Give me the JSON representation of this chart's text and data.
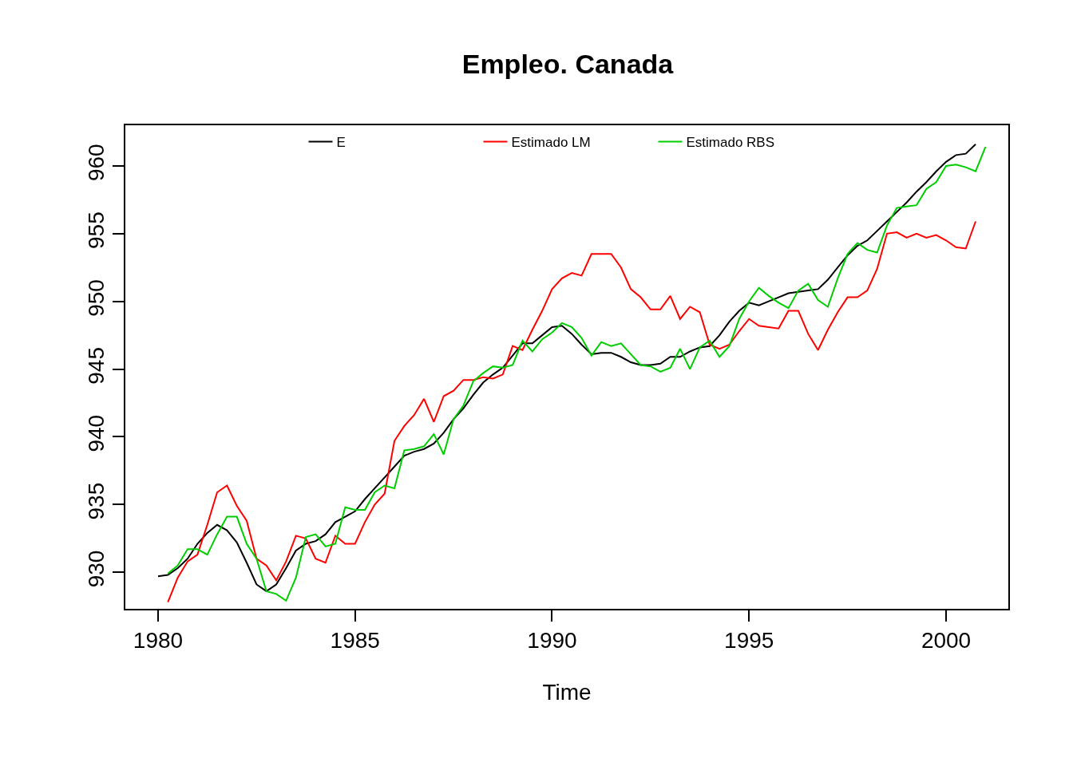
{
  "chart_data": {
    "type": "line",
    "title": "Empleo. Canada",
    "xlabel": "Time",
    "xlim": [
      1979.17,
      2001.58
    ],
    "xticks": [
      1980,
      1985,
      1990,
      1995,
      2000
    ],
    "ylim": [
      927.3,
      963.0
    ],
    "yticks": [
      930,
      935,
      940,
      945,
      950,
      955,
      960
    ],
    "legend": "top",
    "marker": "none",
    "line_style": "solid",
    "series": [
      {
        "name": "E",
        "color": "#000000",
        "x": [
          1980.0,
          1980.25,
          1980.5,
          1980.75,
          1981.0,
          1981.25,
          1981.5,
          1981.75,
          1982.0,
          1982.25,
          1982.5,
          1982.75,
          1983.0,
          1983.25,
          1983.5,
          1983.75,
          1984.0,
          1984.25,
          1984.5,
          1984.75,
          1985.0,
          1985.25,
          1985.5,
          1985.75,
          1986.0,
          1986.25,
          1986.5,
          1986.75,
          1987.0,
          1987.25,
          1987.5,
          1987.75,
          1988.0,
          1988.25,
          1988.5,
          1988.75,
          1989.0,
          1989.25,
          1989.5,
          1989.75,
          1990.0,
          1990.25,
          1990.5,
          1990.75,
          1991.0,
          1991.25,
          1991.5,
          1991.75,
          1992.0,
          1992.25,
          1992.5,
          1992.75,
          1993.0,
          1993.25,
          1993.5,
          1993.75,
          1994.0,
          1994.25,
          1994.5,
          1994.75,
          1995.0,
          1995.25,
          1995.5,
          1995.75,
          1996.0,
          1996.25,
          1996.5,
          1996.75,
          1997.0,
          1997.25,
          1997.5,
          1997.75,
          1998.0,
          1998.25,
          1998.5,
          1998.75,
          1999.0,
          1999.25,
          1999.5,
          1999.75,
          2000.0,
          2000.25,
          2000.5,
          2000.75
        ],
        "values": [
          929.7,
          929.8,
          930.3,
          931.0,
          932.1,
          932.9,
          933.5,
          933.1,
          932.2,
          930.7,
          929.1,
          928.6,
          929.1,
          930.3,
          931.6,
          932.1,
          932.3,
          932.8,
          933.7,
          934.1,
          934.5,
          935.4,
          936.2,
          937.0,
          937.8,
          938.6,
          938.9,
          939.1,
          939.5,
          940.3,
          941.3,
          942.1,
          943.1,
          944.0,
          944.6,
          945.1,
          946.0,
          946.9,
          946.9,
          947.5,
          948.1,
          948.2,
          947.6,
          946.8,
          946.1,
          946.2,
          946.2,
          945.9,
          945.5,
          945.3,
          945.3,
          945.4,
          945.9,
          945.9,
          946.3,
          946.6,
          946.7,
          947.5,
          948.5,
          949.3,
          949.9,
          949.7,
          950.0,
          950.3,
          950.6,
          950.7,
          950.8,
          950.9,
          951.6,
          952.5,
          953.4,
          954.1,
          954.5,
          955.2,
          955.9,
          956.6,
          957.3,
          958.1,
          958.8,
          959.6,
          960.3,
          960.8,
          960.9,
          961.6
        ]
      },
      {
        "name": "Estimado LM",
        "color": "#ff0000",
        "x": [
          1980.25,
          1980.5,
          1980.75,
          1981.0,
          1981.25,
          1981.5,
          1981.75,
          1982.0,
          1982.25,
          1982.5,
          1982.75,
          1983.0,
          1983.25,
          1983.5,
          1983.75,
          1984.0,
          1984.25,
          1984.5,
          1984.75,
          1985.0,
          1985.25,
          1985.5,
          1985.75,
          1986.0,
          1986.25,
          1986.5,
          1986.75,
          1987.0,
          1987.25,
          1987.5,
          1987.75,
          1988.0,
          1988.25,
          1988.5,
          1988.75,
          1989.0,
          1989.25,
          1989.5,
          1989.75,
          1990.0,
          1990.25,
          1990.5,
          1990.75,
          1991.0,
          1991.25,
          1991.5,
          1991.75,
          1992.0,
          1992.25,
          1992.5,
          1992.75,
          1993.0,
          1993.25,
          1993.5,
          1993.75,
          1994.0,
          1994.25,
          1994.5,
          1994.75,
          1995.0,
          1995.25,
          1995.5,
          1995.75,
          1996.0,
          1996.25,
          1996.5,
          1996.75,
          1997.0,
          1997.25,
          1997.5,
          1997.75,
          1998.0,
          1998.25,
          1998.5,
          1998.75,
          1999.0,
          1999.25,
          1999.5,
          1999.75,
          2000.0,
          2000.25,
          2000.5,
          2000.75
        ],
        "values": [
          927.8,
          929.6,
          930.8,
          931.3,
          933.5,
          935.9,
          936.4,
          934.9,
          933.8,
          931.0,
          930.5,
          929.4,
          930.8,
          932.7,
          932.5,
          931.0,
          930.7,
          932.7,
          932.1,
          932.1,
          933.7,
          935.0,
          935.8,
          939.7,
          940.8,
          941.6,
          942.8,
          941.1,
          943.0,
          943.4,
          944.2,
          944.2,
          944.4,
          944.3,
          944.6,
          946.7,
          946.4,
          947.9,
          949.3,
          950.9,
          951.7,
          952.1,
          951.9,
          953.5,
          953.5,
          953.5,
          952.5,
          950.9,
          950.3,
          949.4,
          949.4,
          950.4,
          948.7,
          949.6,
          949.2,
          946.8,
          946.5,
          946.8,
          947.8,
          948.7,
          948.2,
          948.1,
          948.0,
          949.3,
          949.3,
          947.6,
          946.4,
          947.9,
          949.2,
          950.3,
          950.3,
          950.8,
          952.4,
          955.0,
          955.1,
          954.7,
          955.0,
          954.7,
          954.9,
          954.5,
          954.0,
          953.9,
          955.9
        ]
      },
      {
        "name": "Estimado RBS",
        "color": "#00cd00",
        "x": [
          1980.25,
          1980.5,
          1980.75,
          1981.0,
          1981.25,
          1981.5,
          1981.75,
          1982.0,
          1982.25,
          1982.5,
          1982.75,
          1983.0,
          1983.25,
          1983.5,
          1983.75,
          1984.0,
          1984.25,
          1984.5,
          1984.75,
          1985.0,
          1985.25,
          1985.5,
          1985.75,
          1986.0,
          1986.25,
          1986.5,
          1986.75,
          1987.0,
          1987.25,
          1987.5,
          1987.75,
          1988.0,
          1988.25,
          1988.5,
          1988.75,
          1989.0,
          1989.25,
          1989.5,
          1989.75,
          1990.0,
          1990.25,
          1990.5,
          1990.75,
          1991.0,
          1991.25,
          1991.5,
          1991.75,
          1992.0,
          1992.25,
          1992.5,
          1992.75,
          1993.0,
          1993.25,
          1993.5,
          1993.75,
          1994.0,
          1994.25,
          1994.5,
          1994.75,
          1995.0,
          1995.25,
          1995.5,
          1995.75,
          1996.0,
          1996.25,
          1996.5,
          1996.75,
          1997.0,
          1997.25,
          1997.5,
          1997.75,
          1998.0,
          1998.25,
          1998.5,
          1998.75,
          1999.0,
          1999.25,
          1999.5,
          1999.75,
          2000.0,
          2000.25,
          2000.5,
          2000.75,
          2001.0
        ],
        "values": [
          929.9,
          930.5,
          931.7,
          931.7,
          931.3,
          932.8,
          934.1,
          934.1,
          932.1,
          931.0,
          928.6,
          928.4,
          927.9,
          929.6,
          932.6,
          932.8,
          931.9,
          932.1,
          934.8,
          934.6,
          934.6,
          935.9,
          936.4,
          936.2,
          939.0,
          939.1,
          939.3,
          940.2,
          938.7,
          941.3,
          942.3,
          944.1,
          944.7,
          945.2,
          945.1,
          945.3,
          947.1,
          946.3,
          947.2,
          947.7,
          948.4,
          948.1,
          947.3,
          946.0,
          947.0,
          946.7,
          946.9,
          946.1,
          945.3,
          945.2,
          944.8,
          945.1,
          946.5,
          945.0,
          946.6,
          947.1,
          945.9,
          946.7,
          948.7,
          950.0,
          951.0,
          950.4,
          949.9,
          949.5,
          950.8,
          951.3,
          950.1,
          949.6,
          951.7,
          953.5,
          954.3,
          953.8,
          953.6,
          955.6,
          956.9,
          957.0,
          957.1,
          958.3,
          958.8,
          960.0,
          960.1,
          959.9,
          959.6,
          961.4
        ]
      }
    ]
  }
}
